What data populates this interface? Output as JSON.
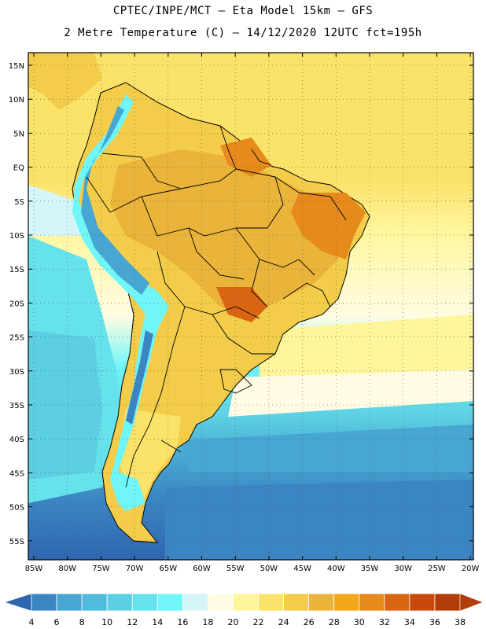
{
  "header": {
    "title_line1": "CPTEC/INPE/MCT –  Eta Model 15km – GFS",
    "title_line2": "2 Metre Temperature (C) – 14/12/2020 12UTC fct=195h"
  },
  "map": {
    "lat_labels": [
      "15N",
      "10N",
      "5N",
      "EQ",
      "5S",
      "10S",
      "15S",
      "20S",
      "25S",
      "30S",
      "35S",
      "40S",
      "45S",
      "50S",
      "55S"
    ],
    "lon_labels": [
      "85W",
      "80W",
      "75W",
      "70W",
      "65W",
      "60W",
      "55W",
      "50W",
      "45W",
      "40W",
      "35W",
      "30W",
      "25W",
      "20W"
    ]
  },
  "legend": {
    "labels": [
      "4",
      "6",
      "8",
      "10",
      "12",
      "14",
      "16",
      "18",
      "20",
      "22",
      "24",
      "26",
      "28",
      "30",
      "32",
      "34",
      "36",
      "38"
    ],
    "colors": [
      "#2e66b0",
      "#3b86c2",
      "#47a6d2",
      "#4fbbdd",
      "#5ccfe2",
      "#66e2ec",
      "#70f6f8",
      "#d6f5fa",
      "#fffce3",
      "#fff69c",
      "#fbe269",
      "#f3cc4a",
      "#eab33a",
      "#f2a61a",
      "#e68a1c",
      "#d96512",
      "#c74a0a",
      "#b03d0a"
    ],
    "low_color": "#2e66b0",
    "high_color": "#b03d0a"
  }
}
